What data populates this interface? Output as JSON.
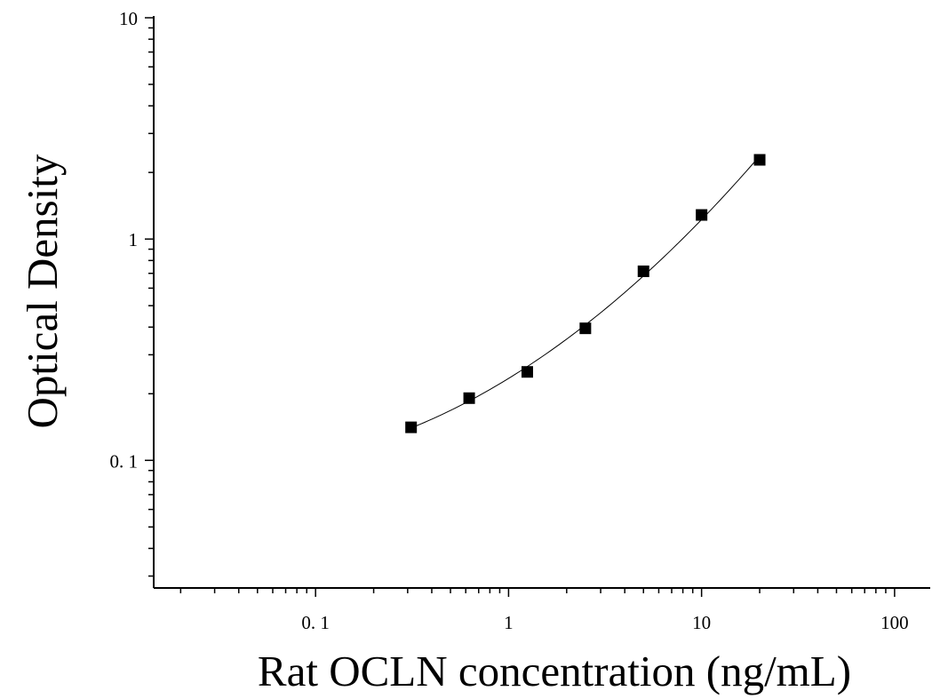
{
  "chart_data": {
    "type": "scatter",
    "title": "",
    "xlabel": "Rat OCLN concentration (ng/mL)",
    "ylabel": "Optical Density",
    "x_scale": "log",
    "y_scale": "log",
    "xlim": [
      0.0145,
      153
    ],
    "ylim": [
      0.0265,
      10
    ],
    "x_ticks": [
      {
        "value": 0.1,
        "label": "0. 1"
      },
      {
        "value": 1,
        "label": "1"
      },
      {
        "value": 10,
        "label": "10"
      },
      {
        "value": 100,
        "label": "100"
      }
    ],
    "y_ticks": [
      {
        "value": 0.1,
        "label": "0. 1"
      },
      {
        "value": 1,
        "label": "1"
      },
      {
        "value": 10,
        "label": "10"
      }
    ],
    "grid": false,
    "legend": "none",
    "series": [
      {
        "x": [
          0.3125,
          0.625,
          1.25,
          2.5,
          5,
          10,
          20
        ],
        "y": [
          0.141,
          0.191,
          0.251,
          0.395,
          0.715,
          1.285,
          2.28
        ],
        "marker": "square",
        "line": "smooth-fit",
        "color": "#000000"
      }
    ]
  }
}
